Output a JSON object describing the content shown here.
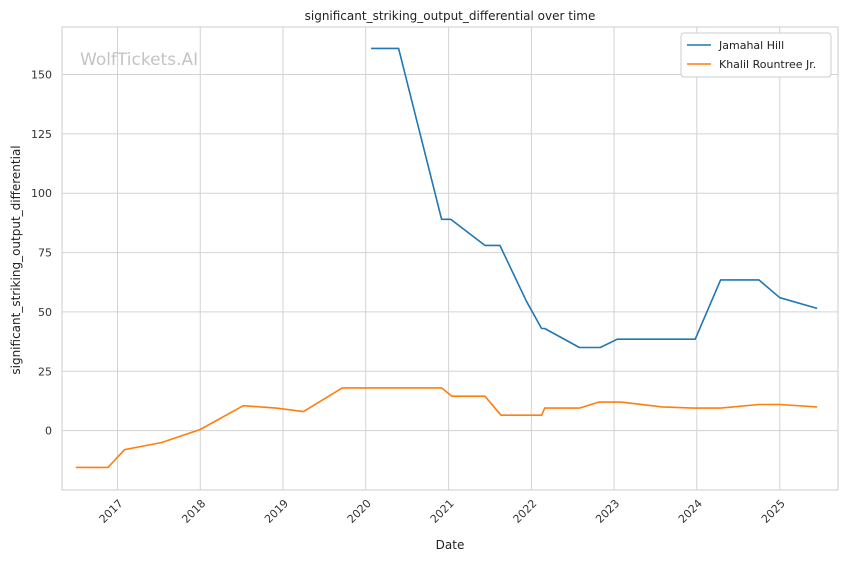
{
  "chart_data": {
    "type": "line",
    "title": "significant_striking_output_differential over time",
    "xlabel": "Date",
    "ylabel": "significant_striking_output_differential",
    "watermark": "WolfTickets.AI",
    "x_ticks": [
      "2017",
      "2018",
      "2019",
      "2020",
      "2021",
      "2022",
      "2023",
      "2024",
      "2025"
    ],
    "y_ticks": [
      0,
      25,
      50,
      75,
      100,
      125,
      150
    ],
    "xlim": [
      "2016-05-01",
      "2025-09-15"
    ],
    "ylim": [
      -25,
      170
    ],
    "grid": true,
    "legend_position": "top-right",
    "series": [
      {
        "name": "Jamahal Hill",
        "color": "#1f77b4",
        "points": [
          [
            "2020-01-25",
            161
          ],
          [
            "2020-05-25",
            161
          ],
          [
            "2020-12-01",
            89
          ],
          [
            "2021-01-10",
            89
          ],
          [
            "2021-06-10",
            78
          ],
          [
            "2021-08-15",
            78
          ],
          [
            "2021-12-10",
            54.5
          ],
          [
            "2022-02-15",
            43
          ],
          [
            "2022-03-01",
            43
          ],
          [
            "2022-08-01",
            35
          ],
          [
            "2022-11-01",
            35
          ],
          [
            "2023-01-15",
            38.5
          ],
          [
            "2023-12-25",
            38.5
          ],
          [
            "2024-04-15",
            63.5
          ],
          [
            "2024-10-01",
            63.5
          ],
          [
            "2025-01-01",
            56
          ],
          [
            "2025-06-15",
            51.5
          ]
        ]
      },
      {
        "name": "Khalil Rountree Jr.",
        "color": "#ff7f0e",
        "points": [
          [
            "2016-07-01",
            -15.5
          ],
          [
            "2016-11-20",
            -15.5
          ],
          [
            "2017-02-01",
            -8
          ],
          [
            "2017-07-15",
            -5
          ],
          [
            "2018-01-01",
            0.5
          ],
          [
            "2018-07-10",
            10.5
          ],
          [
            "2018-12-01",
            9.5
          ],
          [
            "2019-04-01",
            8
          ],
          [
            "2019-09-20",
            18
          ],
          [
            "2020-12-01",
            18
          ],
          [
            "2021-01-15",
            14.5
          ],
          [
            "2021-06-10",
            14.5
          ],
          [
            "2021-08-20",
            6.5
          ],
          [
            "2022-02-15",
            6.5
          ],
          [
            "2022-03-01",
            9.5
          ],
          [
            "2022-08-01",
            9.5
          ],
          [
            "2022-10-25",
            12
          ],
          [
            "2023-02-01",
            12
          ],
          [
            "2023-08-01",
            10
          ],
          [
            "2023-12-15",
            9.5
          ],
          [
            "2024-04-15",
            9.5
          ],
          [
            "2024-10-01",
            11
          ],
          [
            "2025-01-01",
            11
          ],
          [
            "2025-06-15",
            10
          ]
        ]
      }
    ]
  }
}
